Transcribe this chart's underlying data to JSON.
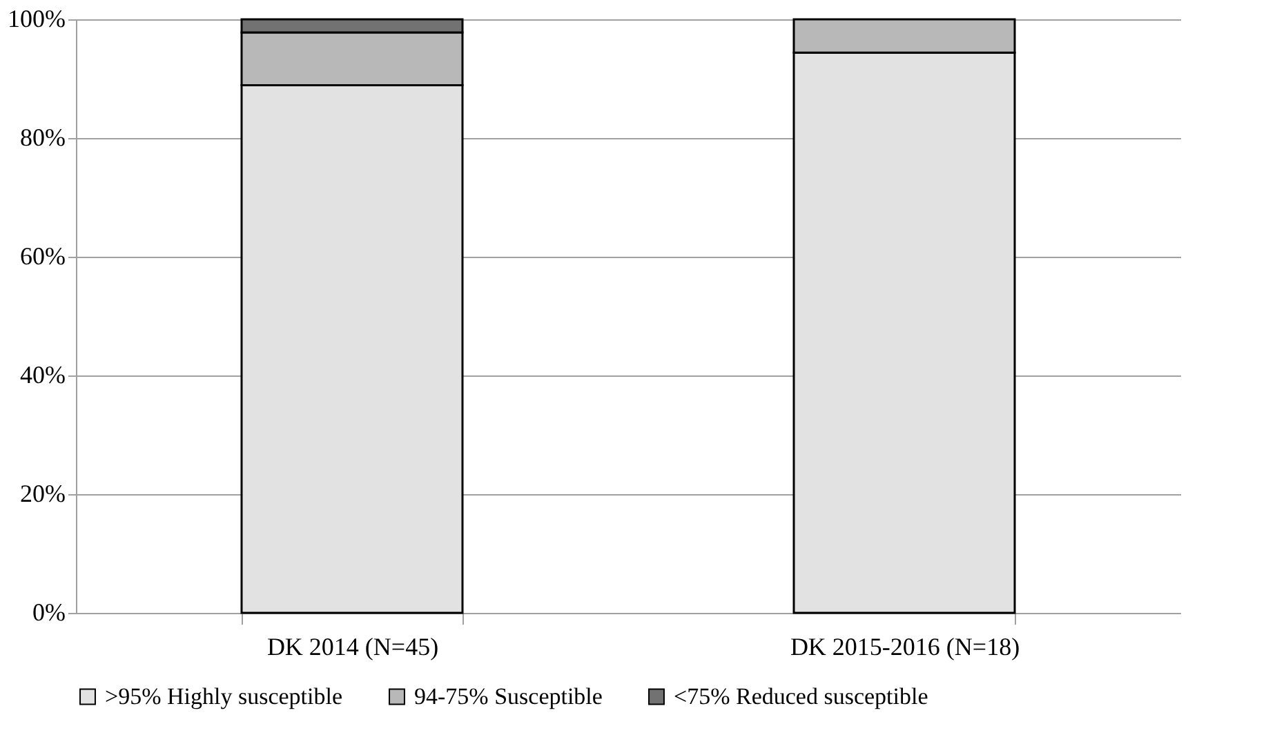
{
  "chart_data": {
    "type": "bar",
    "stacked": true,
    "categories": [
      "DK 2014 (N=45)",
      "DK 2015-2016 (N=18)"
    ],
    "series": [
      {
        "name": ">95% Highly susceptible",
        "color": "#e2e2e2",
        "values": [
          88.9,
          94.4
        ]
      },
      {
        "name": "94-75% Susceptible",
        "color": "#b8b8b8",
        "values": [
          8.9,
          5.6
        ]
      },
      {
        "name": "<75% Reduced susceptible",
        "color": "#727272",
        "values": [
          2.2,
          0
        ]
      }
    ],
    "ylim": [
      0,
      100
    ],
    "yticks": [
      {
        "value": 0,
        "label": "0%"
      },
      {
        "value": 20,
        "label": "20%"
      },
      {
        "value": 40,
        "label": "40%"
      },
      {
        "value": 60,
        "label": "60%"
      },
      {
        "value": 80,
        "label": "80%"
      },
      {
        "value": 100,
        "label": "100%"
      }
    ],
    "grid": "y",
    "legend": "bottom"
  }
}
